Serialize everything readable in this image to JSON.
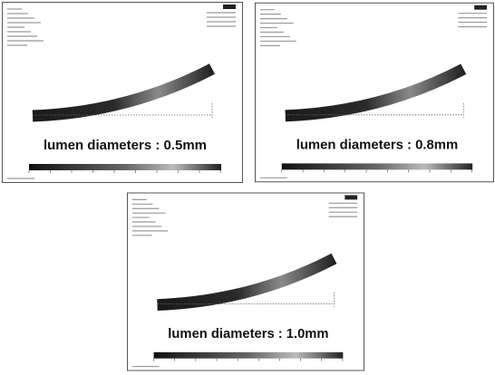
{
  "panels": [
    {
      "caption": "lumen diameters : 0.5mm"
    },
    {
      "caption": "lumen diameters : 0.8mm"
    },
    {
      "caption": "lumen diameters : 1.0mm"
    }
  ]
}
